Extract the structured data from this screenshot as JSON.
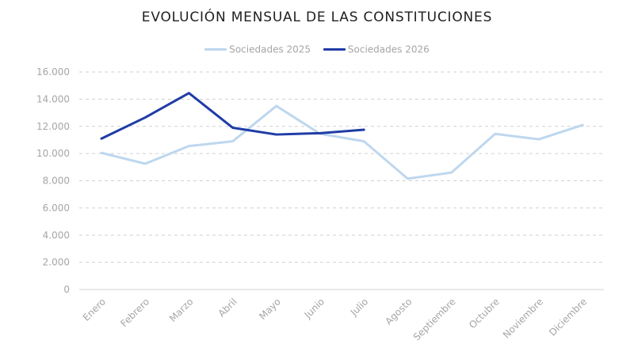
{
  "chart_data": {
    "type": "line",
    "title": "EVOLUCIÓN MENSUAL DE LAS CONSTITUCIONES",
    "categories": [
      "Enero",
      "Febrero",
      "Marzo",
      "Abril",
      "Mayo",
      "Junio",
      "Julio",
      "Agosto",
      "Septiembre",
      "Octubre",
      "Noviembre",
      "Diciembre"
    ],
    "y_tick_labels": [
      "0",
      "2.000",
      "4.000",
      "6.000",
      "8.000",
      "10.000",
      "12.000",
      "14.000",
      "16.000"
    ],
    "ylim": [
      0,
      16000
    ],
    "grid": true,
    "legend_position": "top-center",
    "series": [
      {
        "name": "Sociedades 2025",
        "color": "#bdd7ee",
        "values": [
          10050,
          9250,
          10550,
          10900,
          13500,
          11450,
          10900,
          8150,
          8600,
          11450,
          11050,
          12100
        ]
      },
      {
        "name": "Sociedades 2026",
        "color": "#1f3ca6",
        "values": [
          11100,
          12650,
          14450,
          11900,
          11400,
          11500,
          11750,
          null,
          null,
          null,
          null,
          null
        ]
      }
    ]
  }
}
